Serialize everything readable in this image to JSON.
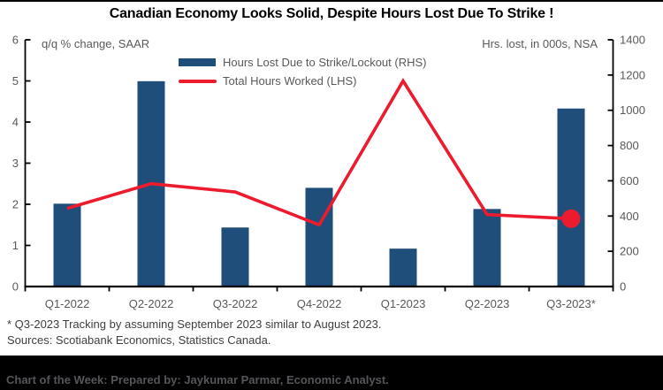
{
  "title": "Canadian Economy Looks Solid, Despite Hours Lost Due To Strike !",
  "footnotes": {
    "line1": "* Q3-2023 Tracking by assuming September 2023 similar to August 2023.",
    "line2": "Sources: Scotiabank Economics, Statistics Canada."
  },
  "footer": {
    "text": "Chart of the Week: Prepared by: Jaykumar Parmar, Economic Analyst."
  },
  "colors": {
    "bar": "#1F4E7B",
    "line": "#EC1B2E",
    "axis": "#000000",
    "tick_text": "#595959",
    "footnote_text": "#3F3F3F",
    "footer_bg": "#000000",
    "footer_text": "#55565A"
  },
  "chart_data": {
    "type": "bar",
    "subtype": "bar+line dual-axis combo",
    "categories": [
      "Q1-2022",
      "Q2-2022",
      "Q3-2022",
      "Q4-2022",
      "Q1-2023",
      "Q2-2023",
      "Q3-2023*"
    ],
    "series": [
      {
        "name": "Hours Lost Due to Strike/Lockout (RHS)",
        "type": "bar",
        "axis": "right",
        "values": [
          470,
          1165,
          335,
          560,
          215,
          440,
          1010
        ]
      },
      {
        "name": "Total Hours Worked (LHS)",
        "type": "line",
        "axis": "left",
        "values": [
          1.9,
          2.5,
          2.3,
          1.5,
          5.0,
          1.75,
          1.65
        ],
        "last_point_marker": true
      }
    ],
    "left_axis": {
      "label": "q/q % change, SAAR",
      "min": 0,
      "max": 6,
      "step": 1
    },
    "right_axis": {
      "label": "Hrs. lost, in 000s, NSA",
      "min": 0,
      "max": 1400,
      "step": 200
    },
    "grid": false,
    "legend_position": "top-center"
  }
}
